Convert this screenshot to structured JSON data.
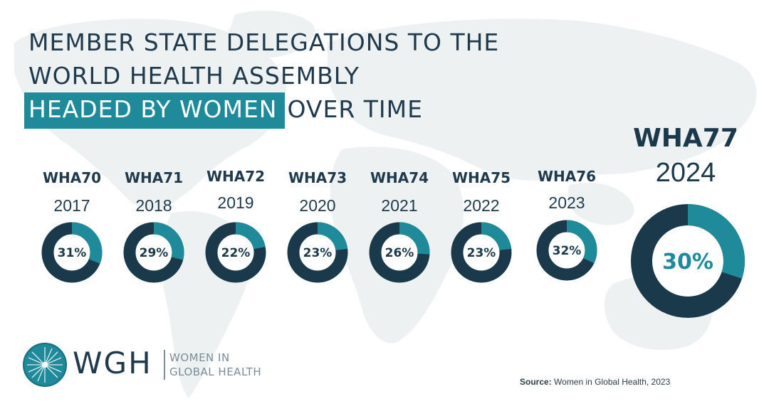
{
  "title": {
    "line1": "MEMBER STATE DELEGATIONS TO THE",
    "line2": "WORLD HEALTH ASSEMBLY",
    "line3_highlight": "HEADED BY WOMEN",
    "line3_rest": "OVER TIME"
  },
  "colors": {
    "dark": "#1a3a4c",
    "accent": "#1e8a9a",
    "title_text": "#1f3a4d",
    "map": "#eef1f2"
  },
  "chart_data": {
    "type": "donut",
    "unit": "%",
    "items": [
      {
        "session": "WHA70",
        "year": "2017",
        "value": 31,
        "label": "31%"
      },
      {
        "session": "WHA71",
        "year": "2018",
        "value": 29,
        "label": "29%"
      },
      {
        "session": "WHA72",
        "year": "2019",
        "value": 22,
        "label": "22%"
      },
      {
        "session": "WHA73",
        "year": "2020",
        "value": 23,
        "label": "23%"
      },
      {
        "session": "WHA74",
        "year": "2021",
        "value": 26,
        "label": "26%"
      },
      {
        "session": "WHA75",
        "year": "2022",
        "value": 23,
        "label": "23%"
      },
      {
        "session": "WHA76",
        "year": "2023",
        "value": 32,
        "label": "32%"
      }
    ],
    "featured": {
      "session": "WHA77",
      "year": "2024",
      "value": 30,
      "label": "30%"
    }
  },
  "logo": {
    "abbr": "WGH",
    "line1": "WOMEN IN",
    "line2": "GLOBAL HEALTH",
    "icon": "starburst-globe-icon"
  },
  "source": {
    "label": "Source:",
    "text": "Women in Global Health, 2023"
  }
}
